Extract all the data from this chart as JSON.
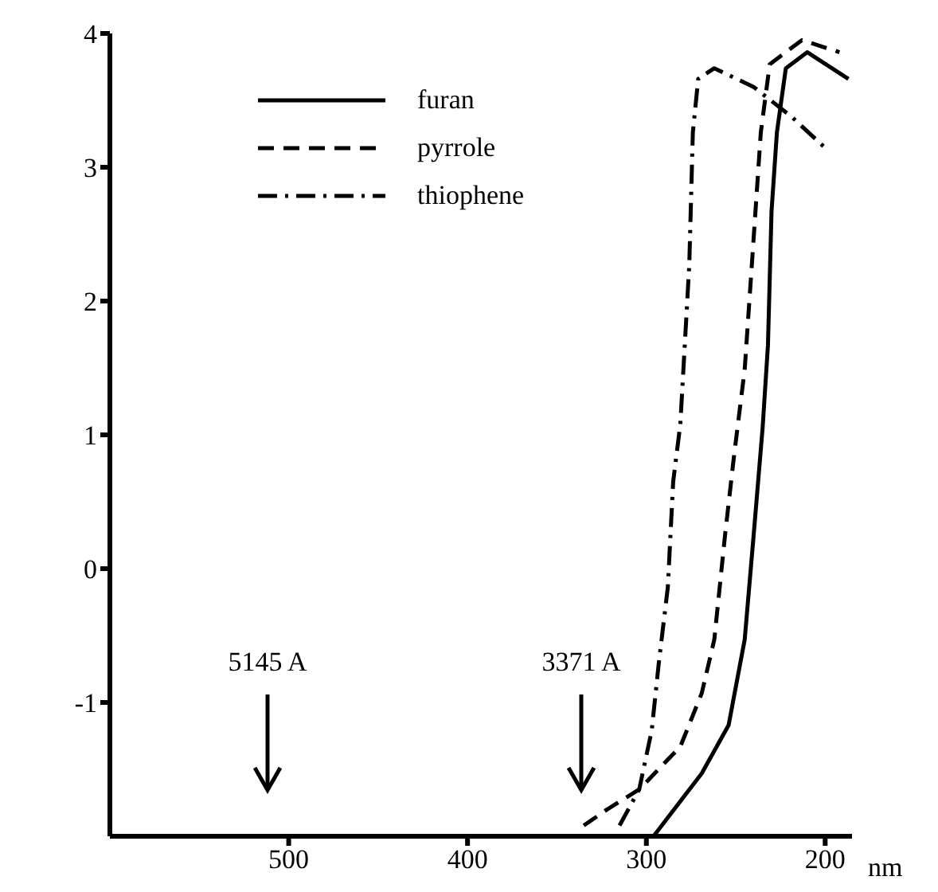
{
  "chart_data": {
    "type": "line",
    "xlabel": "nm",
    "xlim": [
      600,
      185
    ],
    "xticks": [
      500,
      400,
      300,
      200
    ],
    "ylim": [
      -2,
      4
    ],
    "yticks": [
      -1,
      0,
      1,
      2,
      3,
      4
    ],
    "legend": "top left",
    "marker": "none",
    "series": [
      {
        "name": "furan",
        "color": "#000000",
        "line_style": "solid",
        "x": [
          296,
          269,
          254,
          245,
          240,
          235,
          232,
          230,
          227,
          222,
          210,
          187
        ],
        "values": [
          -2,
          -1.53,
          -1.17,
          -0.53,
          0.25,
          1.05,
          1.67,
          2.67,
          3.26,
          3.74,
          3.86,
          3.66
        ]
      },
      {
        "name": "pyrrole",
        "color": "#000000",
        "line_style": "dashed",
        "x": [
          335,
          322,
          304,
          281,
          269,
          262,
          256,
          251,
          245,
          240,
          236,
          231,
          213,
          192
        ],
        "values": [
          -1.92,
          -1.8,
          -1.65,
          -1.33,
          -0.93,
          -0.53,
          0.25,
          0.84,
          1.49,
          2.47,
          3.26,
          3.77,
          3.95,
          3.86
        ]
      },
      {
        "name": "thiophene",
        "color": "#000000",
        "line_style": "dashdot",
        "x": [
          315,
          304,
          297,
          293,
          288,
          285,
          281,
          276,
          274,
          271,
          262,
          240,
          219,
          198
        ],
        "values": [
          -1.92,
          -1.65,
          -1.21,
          -0.7,
          -0.14,
          0.65,
          1.08,
          2.27,
          3.26,
          3.66,
          3.74,
          3.6,
          3.38,
          3.12
        ]
      }
    ],
    "annotations": [
      "5145 A",
      "3371 A"
    ]
  }
}
